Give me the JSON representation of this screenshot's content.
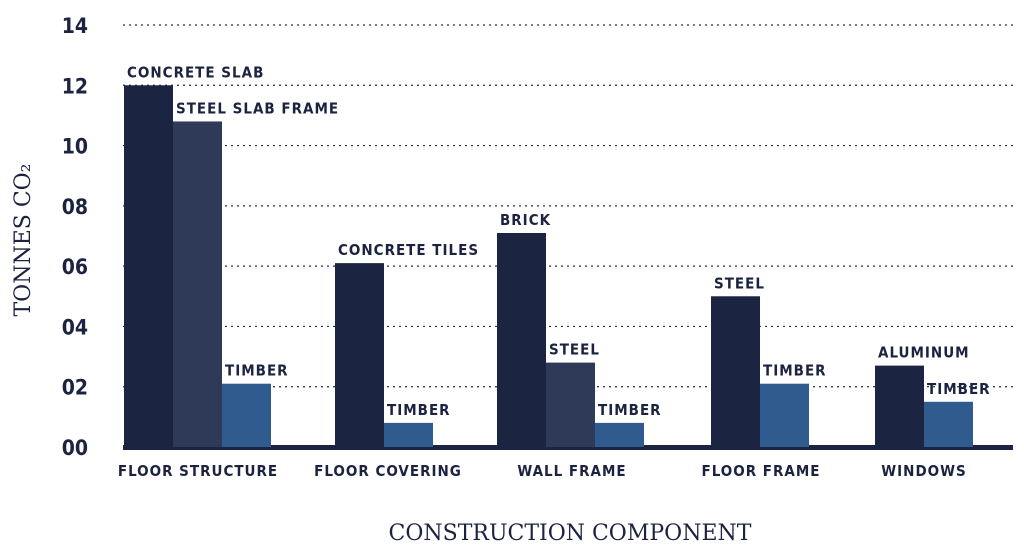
{
  "chart_data": {
    "type": "bar",
    "ylabel": "TONNES CO₂",
    "xlabel": "CONSTRUCTION COMPONENT",
    "ylim": [
      0,
      1.4
    ],
    "yticks": [
      {
        "value": 0,
        "label": "00"
      },
      {
        "value": 0.2,
        "label": "02"
      },
      {
        "value": 0.4,
        "label": "04"
      },
      {
        "value": 0.6,
        "label": "06"
      },
      {
        "value": 0.8,
        "label": "08"
      },
      {
        "value": 1.0,
        "label": "10"
      },
      {
        "value": 1.2,
        "label": "12"
      },
      {
        "value": 1.4,
        "label": "14"
      }
    ],
    "grid": "horizontal dotted",
    "colors": {
      "material_1": "#1b2440",
      "material_2": "#2e3a58",
      "material_3": "#2f5b8e",
      "baseline": "#1b2440",
      "text": "#1c2340"
    },
    "groups": [
      {
        "category": "FLOOR STRUCTURE",
        "bars": [
          {
            "label": "CONCRETE SLAB",
            "value": 1.2,
            "style": "material_1"
          },
          {
            "label": "STEEL SLAB FRAME",
            "value": 1.08,
            "style": "material_2"
          },
          {
            "label": "TIMBER",
            "value": 0.21,
            "style": "material_3"
          }
        ]
      },
      {
        "category": "FLOOR COVERING",
        "bars": [
          {
            "label": "CONCRETE TILES",
            "value": 0.61,
            "style": "material_1"
          },
          {
            "label": "TIMBER",
            "value": 0.08,
            "style": "material_3"
          }
        ]
      },
      {
        "category": "WALL FRAME",
        "bars": [
          {
            "label": "BRICK",
            "value": 0.71,
            "style": "material_1"
          },
          {
            "label": "STEEL",
            "value": 0.28,
            "style": "material_2"
          },
          {
            "label": "TIMBER",
            "value": 0.08,
            "style": "material_3"
          }
        ]
      },
      {
        "category": "FLOOR FRAME",
        "bars": [
          {
            "label": "STEEL",
            "value": 0.5,
            "style": "material_1"
          },
          {
            "label": "TIMBER",
            "value": 0.21,
            "style": "material_3"
          }
        ]
      },
      {
        "category": "WINDOWS",
        "bars": [
          {
            "label": "ALUMINUM",
            "value": 0.27,
            "style": "material_1"
          },
          {
            "label": "TIMBER",
            "value": 0.15,
            "style": "material_3"
          }
        ]
      }
    ]
  }
}
